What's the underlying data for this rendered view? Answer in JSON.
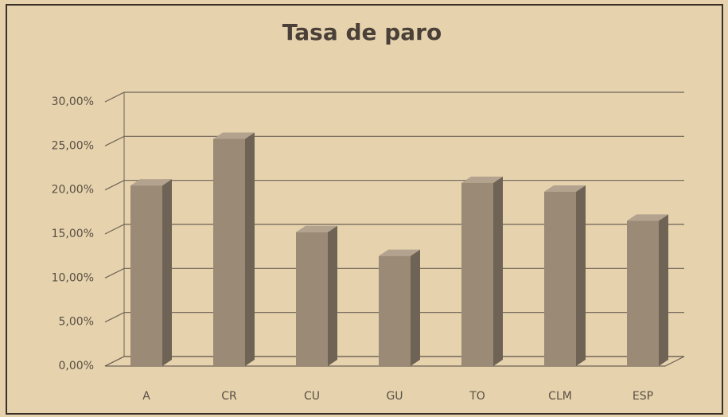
{
  "chart_data": {
    "type": "bar3d",
    "title": "Tasa de paro",
    "categories": [
      "A",
      "CR",
      "CU",
      "GU",
      "TO",
      "CLM",
      "ESP"
    ],
    "values": [
      20.5,
      25.8,
      15.2,
      12.5,
      20.8,
      19.8,
      16.5
    ],
    "color": "#9a8a76",
    "ylim": [
      0,
      30
    ],
    "yticks": [
      {
        "value": 0,
        "label": "0,00%"
      },
      {
        "value": 5,
        "label": "5,00%"
      },
      {
        "value": 10,
        "label": "10,00%"
      },
      {
        "value": 15,
        "label": "15,00%"
      },
      {
        "value": 20,
        "label": "20,00%"
      },
      {
        "value": 25,
        "label": "25,00%"
      },
      {
        "value": 30,
        "label": "30,00%"
      }
    ],
    "grid": true
  }
}
